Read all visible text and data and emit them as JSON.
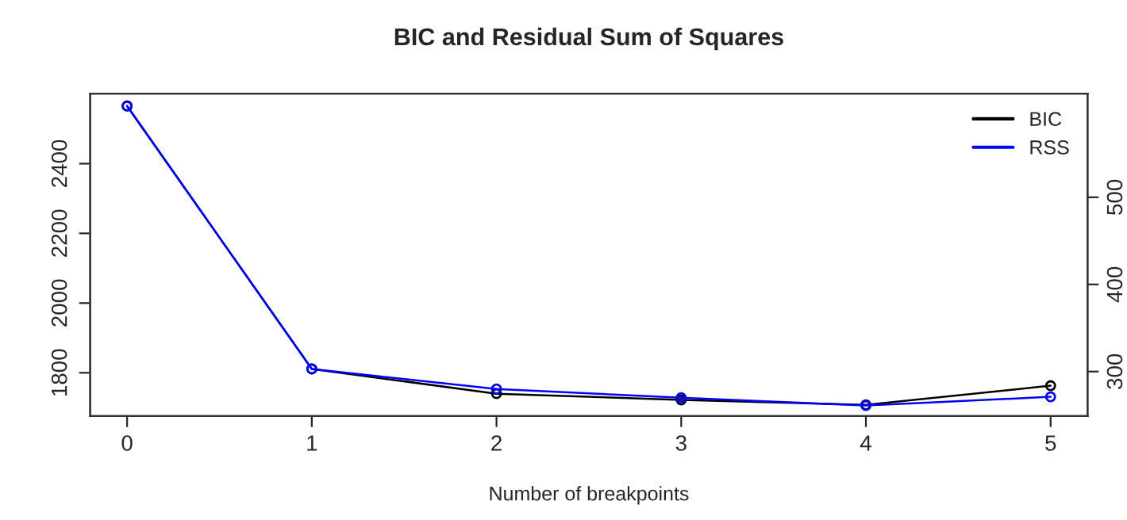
{
  "chart_data": {
    "type": "line",
    "title": "BIC and Residual Sum of Squares",
    "xlabel": "Number of breakpoints",
    "x": [
      0,
      1,
      2,
      3,
      4,
      5
    ],
    "xlim": [
      -0.2,
      5.2
    ],
    "xticks": [
      0,
      1,
      2,
      3,
      4,
      5
    ],
    "ylim": [
      1676,
      2601
    ],
    "yticks": [
      1800,
      2000,
      2200,
      2400
    ],
    "y2lim": [
      249,
      619
    ],
    "y2ticks": [
      300,
      400,
      500
    ],
    "series": [
      {
        "name": "BIC",
        "color": "#000000",
        "values": [
          2565,
          1811,
          1740,
          1722,
          1708,
          1763
        ]
      },
      {
        "name": "RSS",
        "color": "#0000ff",
        "axis": "y2",
        "values": [
          605,
          303,
          280,
          270,
          261,
          271
        ]
      }
    ],
    "marker": "circle",
    "line_style": "solid",
    "legend": "top right",
    "grid": false
  }
}
